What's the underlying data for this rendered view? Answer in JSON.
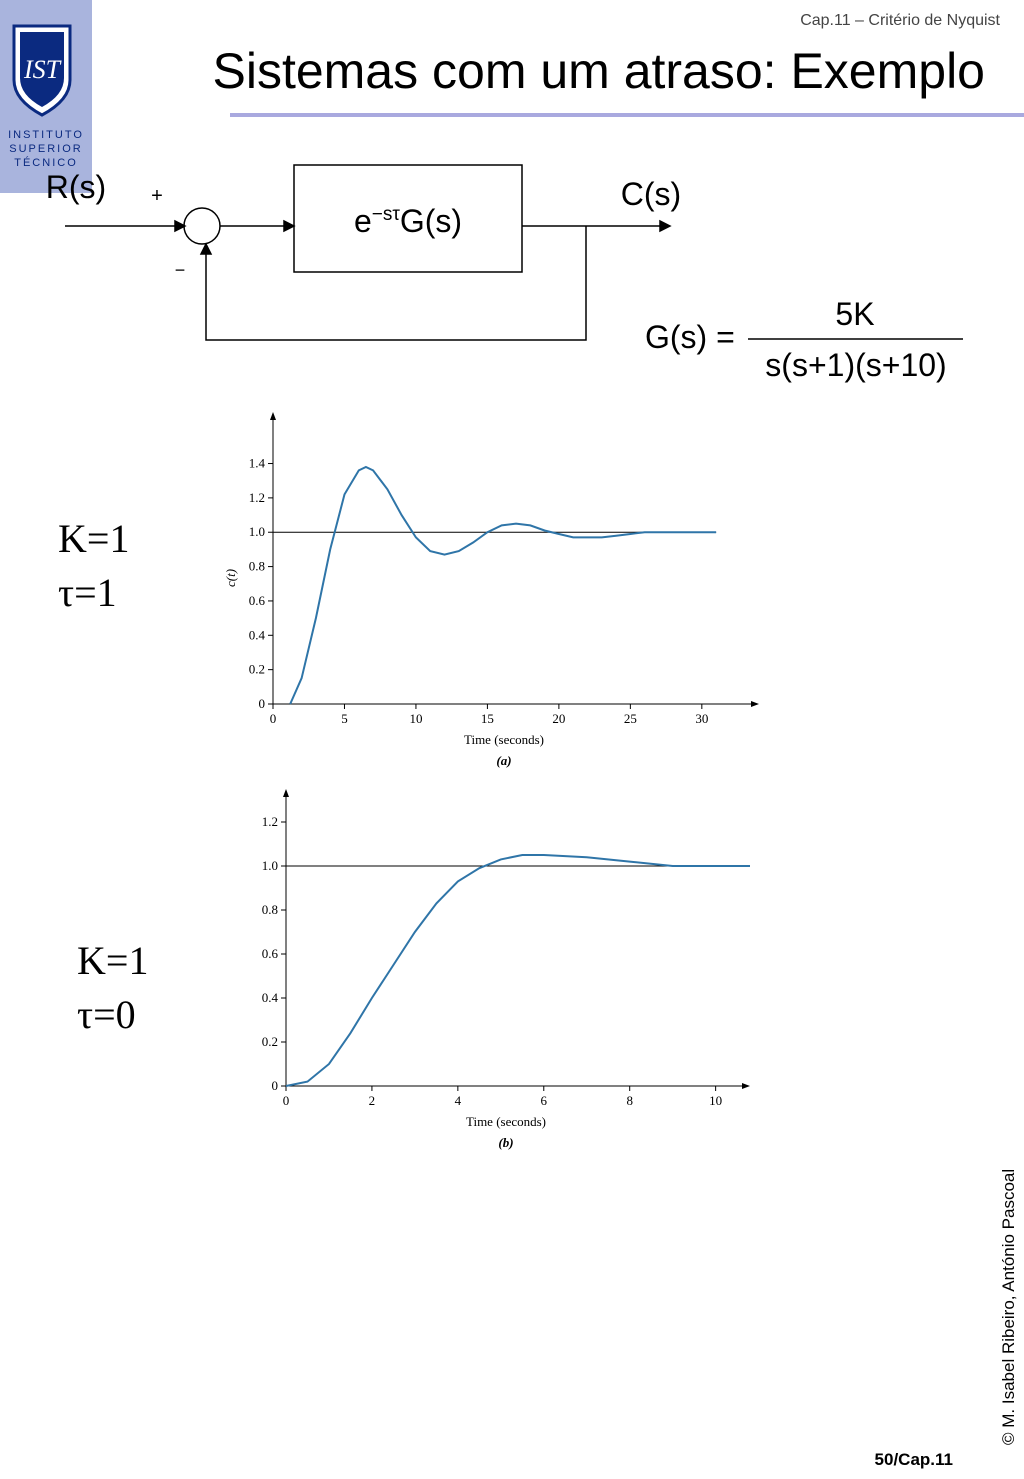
{
  "header": {
    "chapter": "Cap.11 – Critério de Nyquist",
    "title": "Sistemas com um atraso: Exemplo",
    "logo": [
      "INSTITUTO",
      "SUPERIOR",
      "TÉCNICO"
    ]
  },
  "diagram": {
    "input": "R(s)",
    "plus": "+",
    "minus": "−",
    "block": {
      "base": "e",
      "exponent": "−sτ",
      "rest": "G(s)"
    },
    "output": "C(s)",
    "formula": {
      "lhs": "G(s) =",
      "numerator": "5K",
      "denominator": "s(s+1)(s+10)"
    }
  },
  "cases": [
    {
      "k": "K=1",
      "tau": "τ=1"
    },
    {
      "k": "K=1",
      "tau": "τ=0"
    }
  ],
  "chart_data": [
    {
      "type": "line",
      "ylabel": "c(t)",
      "xlabel": "Time (seconds)",
      "caption": "(a)",
      "color": "#2f75a8",
      "x": [
        1.2,
        2,
        3,
        4,
        5,
        6,
        6.5,
        7,
        8,
        9,
        10,
        11,
        12,
        13,
        14,
        15,
        16,
        17,
        18,
        19,
        20,
        21,
        22,
        23,
        24,
        25,
        26,
        28,
        31
      ],
      "values": [
        0,
        0.15,
        0.5,
        0.9,
        1.22,
        1.36,
        1.38,
        1.36,
        1.25,
        1.1,
        0.97,
        0.89,
        0.87,
        0.89,
        0.94,
        1.0,
        1.04,
        1.05,
        1.04,
        1.01,
        0.99,
        0.97,
        0.97,
        0.97,
        0.98,
        0.99,
        1.0,
        1.0,
        1.0
      ],
      "hline": 1,
      "xlim": [
        0,
        34
      ],
      "ylim": [
        0,
        1.7
      ],
      "xticks": [
        0,
        5,
        10,
        15,
        20,
        25,
        30
      ],
      "yticks": [
        0,
        0.2,
        0.4,
        0.6,
        0.8,
        {
          "value": 1,
          "label": "1.0"
        },
        1.2,
        1.4
      ]
    },
    {
      "type": "line",
      "xlabel": "Time (seconds)",
      "caption": "(b)",
      "color": "#2f75a8",
      "x": [
        0,
        0.5,
        1,
        1.5,
        2,
        2.5,
        3,
        3.5,
        4,
        4.5,
        5,
        5.5,
        6,
        7,
        8,
        9,
        10,
        10.8
      ],
      "values": [
        0,
        0.02,
        0.1,
        0.24,
        0.4,
        0.55,
        0.7,
        0.83,
        0.93,
        0.99,
        1.03,
        1.05,
        1.05,
        1.04,
        1.02,
        1.0,
        1.0,
        1.0
      ],
      "hline": 1,
      "xlim": [
        0,
        10.8
      ],
      "ylim": [
        0,
        1.35
      ],
      "xticks": [
        0,
        2,
        4,
        6,
        8,
        10
      ],
      "yticks": [
        0,
        0.2,
        0.4,
        0.6,
        0.8,
        {
          "value": 1,
          "label": "1.0"
        },
        1.2
      ]
    }
  ],
  "footer": {
    "page": "50/Cap.11",
    "copyright": "© M. Isabel Ribeiro, António Pascoal"
  }
}
